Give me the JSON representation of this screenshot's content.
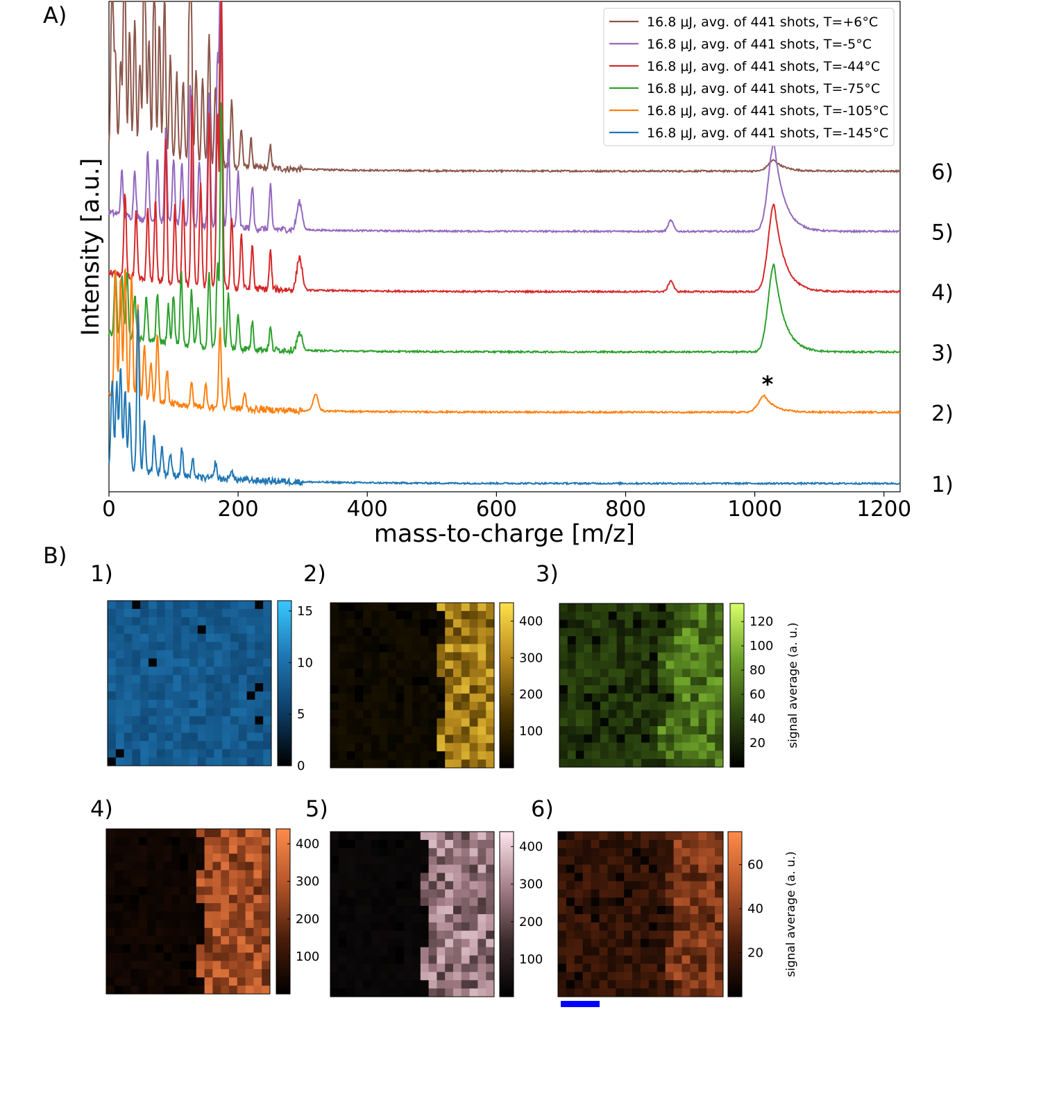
{
  "panel_a_label": "A)",
  "panel_b_label": "B)",
  "chart_data": [
    {
      "type": "line",
      "xlabel": "mass-to-charge [m/z]",
      "ylabel": "Intensity [a.u.]",
      "xlim": [
        0,
        1225
      ],
      "x_ticks": [
        "0",
        "200",
        "400",
        "600",
        "800",
        "1000",
        "1200"
      ],
      "x_tick_values": [
        0,
        200,
        400,
        600,
        800,
        1000,
        1200
      ],
      "y_ticks": "none",
      "grid": false,
      "legend_position": "top-right",
      "annotation": "*",
      "annotation_x": 1015,
      "series": [
        {
          "name": "16.8 μJ, avg. of 441 shots, T=+6°C",
          "label": "6)",
          "color": "#8c564b",
          "baseline": 6.0,
          "peak_scale": 1.0,
          "peaks": [
            [
              5,
              3.6
            ],
            [
              10,
              1.7
            ],
            [
              18,
              1.6
            ],
            [
              24,
              4.4
            ],
            [
              32,
              2.3
            ],
            [
              40,
              2.5
            ],
            [
              48,
              1.7
            ],
            [
              55,
              4.9
            ],
            [
              62,
              2.2
            ],
            [
              70,
              3.8
            ],
            [
              78,
              2.5
            ],
            [
              86,
              3.1
            ],
            [
              95,
              1.9
            ],
            [
              105,
              1.6
            ],
            [
              115,
              1.5
            ],
            [
              126,
              6.3
            ],
            [
              135,
              1.7
            ],
            [
              145,
              1.6
            ],
            [
              155,
              2.4
            ],
            [
              165,
              1.5
            ],
            [
              173,
              3.0
            ],
            [
              190,
              1.2
            ],
            [
              205,
              0.7
            ],
            [
              220,
              0.5
            ],
            [
              250,
              0.4
            ],
            [
              1030,
              0.2
            ]
          ]
        },
        {
          "name": "16.8 μJ, avg. of 441 shots, T=-5°C",
          "label": "5)",
          "color": "#9467bd",
          "baseline": 4.9,
          "peak_scale": 1.0,
          "peaks": [
            [
              20,
              0.8
            ],
            [
              40,
              0.9
            ],
            [
              60,
              1.3
            ],
            [
              75,
              1.2
            ],
            [
              88,
              1.7
            ],
            [
              100,
              1.2
            ],
            [
              113,
              1.1
            ],
            [
              126,
              2.6
            ],
            [
              140,
              1.2
            ],
            [
              155,
              2.5
            ],
            [
              168,
              3.0
            ],
            [
              173,
              5.8
            ],
            [
              185,
              1.6
            ],
            [
              200,
              1.0
            ],
            [
              222,
              0.8
            ],
            [
              250,
              0.8
            ],
            [
              295,
              0.5
            ],
            [
              870,
              0.2
            ],
            [
              1030,
              1.6
            ]
          ]
        },
        {
          "name": "16.8 μJ, avg. of 441 shots, T=-44°C",
          "label": "4)",
          "color": "#d62728",
          "baseline": 3.8,
          "peak_scale": 1.0,
          "peaks": [
            [
              25,
              1.5
            ],
            [
              42,
              1.2
            ],
            [
              60,
              1.3
            ],
            [
              72,
              1.5
            ],
            [
              88,
              2.6
            ],
            [
              102,
              1.4
            ],
            [
              115,
              1.6
            ],
            [
              129,
              3.5
            ],
            [
              142,
              1.9
            ],
            [
              155,
              3.2
            ],
            [
              168,
              3.2
            ],
            [
              174,
              6.1
            ],
            [
              190,
              1.3
            ],
            [
              205,
              1.0
            ],
            [
              222,
              0.8
            ],
            [
              250,
              0.7
            ],
            [
              295,
              0.6
            ],
            [
              870,
              0.2
            ],
            [
              1030,
              1.6
            ]
          ]
        },
        {
          "name": "16.8 μJ, avg. of 441 shots, T=-75°C",
          "label": "3)",
          "color": "#2ca02c",
          "baseline": 2.7,
          "peak_scale": 1.0,
          "peaks": [
            [
              10,
              1.2
            ],
            [
              20,
              1.1
            ],
            [
              28,
              1.2
            ],
            [
              40,
              0.8
            ],
            [
              58,
              0.8
            ],
            [
              75,
              0.9
            ],
            [
              92,
              0.7
            ],
            [
              100,
              0.9
            ],
            [
              112,
              1.3
            ],
            [
              128,
              1.0
            ],
            [
              138,
              0.7
            ],
            [
              155,
              1.4
            ],
            [
              168,
              1.5
            ],
            [
              174,
              4.6
            ],
            [
              185,
              1.0
            ],
            [
              200,
              0.6
            ],
            [
              222,
              0.5
            ],
            [
              250,
              0.4
            ],
            [
              295,
              0.3
            ],
            [
              1030,
              1.6
            ]
          ]
        },
        {
          "name": "16.8 μJ, avg. of 441 shots, T=-105°C",
          "label": "2)",
          "color": "#ff7f0e",
          "baseline": 1.6,
          "peak_scale": 1.0,
          "peaks": [
            [
              10,
              2.3
            ],
            [
              18,
              2.2
            ],
            [
              25,
              2.4
            ],
            [
              35,
              2.3
            ],
            [
              45,
              1.7
            ],
            [
              55,
              1.0
            ],
            [
              65,
              0.7
            ],
            [
              75,
              1.2
            ],
            [
              90,
              0.6
            ],
            [
              128,
              0.4
            ],
            [
              150,
              0.4
            ],
            [
              172,
              1.5
            ],
            [
              185,
              0.5
            ],
            [
              210,
              0.3
            ],
            [
              320,
              0.3
            ],
            [
              1015,
              0.3
            ]
          ]
        },
        {
          "name": "16.8 μJ, avg. of 441 shots, T=-145°C",
          "label": "1)",
          "color": "#1f77b4",
          "baseline": 0.3,
          "peak_scale": 1.0,
          "peaks": [
            [
              5,
              1.6
            ],
            [
              12,
              1.5
            ],
            [
              18,
              1.8
            ],
            [
              25,
              1.4
            ],
            [
              32,
              1.2
            ],
            [
              45,
              2.9
            ],
            [
              55,
              0.9
            ],
            [
              70,
              0.7
            ],
            [
              82,
              0.5
            ],
            [
              95,
              0.4
            ],
            [
              113,
              0.5
            ],
            [
              130,
              0.3
            ],
            [
              165,
              0.3
            ],
            [
              190,
              0.2
            ]
          ]
        }
      ]
    },
    {
      "type": "heatmap",
      "label": "1)",
      "colorbar_ticks": [
        "0",
        "5",
        "10",
        "15"
      ],
      "colorbar_tick_values": [
        0,
        5,
        10,
        15
      ],
      "vmin": 0,
      "vmax": 16,
      "colormap": [
        "#000000",
        "#0d3d66",
        "#1f77b4",
        "#39c8ff"
      ],
      "rows": 20,
      "cols": 20,
      "pattern": "uniform",
      "mean": 8,
      "spread": 1.5
    },
    {
      "type": "heatmap",
      "label": "2)",
      "colorbar_ticks": [
        "100",
        "200",
        "300",
        "400"
      ],
      "colorbar_tick_values": [
        100,
        200,
        300,
        400
      ],
      "vmin": 0,
      "vmax": 450,
      "colormap": [
        "#000000",
        "#4a3400",
        "#b98b1e",
        "#ffe14a"
      ],
      "rows": 20,
      "cols": 20,
      "pattern": "right-high",
      "low": 40,
      "high": 300,
      "split": 0.65
    },
    {
      "type": "heatmap",
      "label": "3)",
      "colorbar_ticks": [
        "20",
        "40",
        "60",
        "80",
        "100",
        "120"
      ],
      "colorbar_tick_values": [
        20,
        40,
        60,
        80,
        100,
        120
      ],
      "vmin": 0,
      "vmax": 135,
      "colormap": [
        "#000000",
        "#2f4a10",
        "#6ea32a",
        "#d9ff6a"
      ],
      "rows": 20,
      "cols": 20,
      "pattern": "right-high",
      "low": 40,
      "high": 75,
      "split": 0.62,
      "side_label": "signal average (a. u.)"
    },
    {
      "type": "heatmap",
      "label": "4)",
      "colorbar_ticks": [
        "100",
        "200",
        "300",
        "400"
      ],
      "colorbar_tick_values": [
        100,
        200,
        300,
        400
      ],
      "vmin": 0,
      "vmax": 440,
      "colormap": [
        "#000000",
        "#4a1d0a",
        "#b4552a",
        "#ff8c4a"
      ],
      "rows": 20,
      "cols": 20,
      "pattern": "right-high",
      "low": 40,
      "high": 300,
      "split": 0.55
    },
    {
      "type": "heatmap",
      "label": "5)",
      "colorbar_ticks": [
        "100",
        "200",
        "300",
        "400"
      ],
      "colorbar_tick_values": [
        100,
        200,
        300,
        400
      ],
      "vmin": 0,
      "vmax": 440,
      "colormap": [
        "#000000",
        "#3a2a2c",
        "#a6808a",
        "#ffe6ee"
      ],
      "rows": 20,
      "cols": 20,
      "pattern": "right-high",
      "low": 30,
      "high": 300,
      "split": 0.55
    },
    {
      "type": "heatmap",
      "label": "6)",
      "colorbar_ticks": [
        "20",
        "40",
        "60"
      ],
      "colorbar_tick_values": [
        20,
        40,
        60
      ],
      "vmin": 0,
      "vmax": 75,
      "colormap": [
        "#000000",
        "#4a1d0a",
        "#b4552a",
        "#ff8c4a"
      ],
      "rows": 20,
      "cols": 20,
      "pattern": "right-high",
      "low": 22,
      "high": 40,
      "split": 0.65,
      "side_label": "signal average (a. u.)",
      "scale_bar_color": "#0000ff"
    }
  ]
}
